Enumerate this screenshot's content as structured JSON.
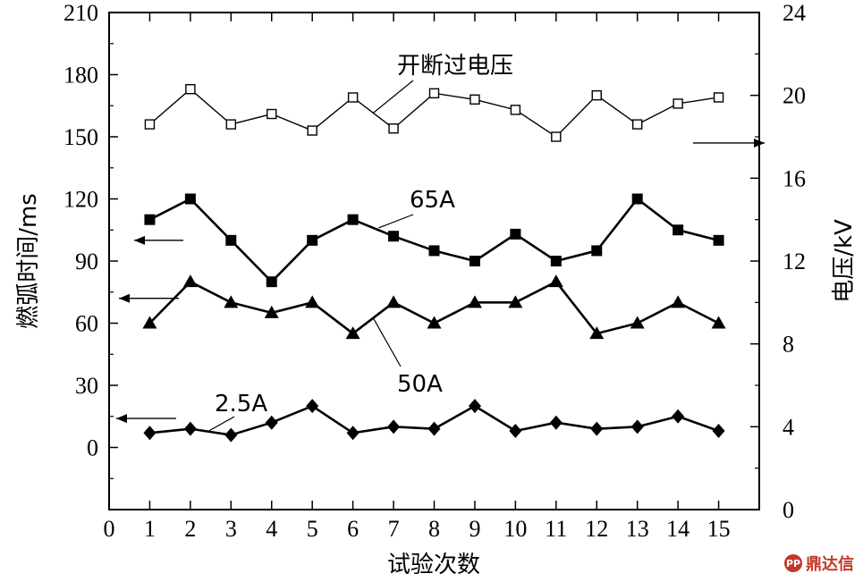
{
  "chart_data": {
    "type": "line",
    "xlabel": "试验次数",
    "ylabel_left": "燃弧时间/ms",
    "ylabel_right": "电压/kV",
    "xlim": [
      0,
      16
    ],
    "ylim_left": [
      -30,
      210
    ],
    "ylim_right": [
      0,
      24
    ],
    "x_ticks": [
      "0",
      "1",
      "2",
      "3",
      "4",
      "5",
      "6",
      "7",
      "8",
      "9",
      "10",
      "11",
      "12",
      "13",
      "14",
      "15"
    ],
    "y_left_ticks": [
      "0",
      "30",
      "60",
      "90",
      "120",
      "150",
      "180",
      "210"
    ],
    "y_right_ticks": [
      "0",
      "4",
      "8",
      "12",
      "16",
      "20",
      "24"
    ],
    "grid": false,
    "x": [
      1,
      2,
      3,
      4,
      5,
      6,
      7,
      8,
      9,
      10,
      11,
      12,
      13,
      14,
      15
    ],
    "series": [
      {
        "name": "开断过电压",
        "axis": "right",
        "marker": "square-open",
        "values": [
          18.6,
          20.3,
          18.6,
          19.1,
          18.3,
          19.9,
          18.4,
          20.1,
          19.8,
          19.3,
          18.0,
          20.0,
          18.6,
          19.6,
          19.9
        ]
      },
      {
        "name": "65A",
        "axis": "left",
        "marker": "square-filled",
        "values": [
          110,
          120,
          100,
          80,
          100,
          110,
          102,
          95,
          90,
          103,
          90,
          95,
          120,
          105,
          100
        ]
      },
      {
        "name": "50A",
        "axis": "left",
        "marker": "triangle-filled",
        "values": [
          60,
          80,
          70,
          65,
          70,
          55,
          70,
          60,
          70,
          70,
          80,
          55,
          60,
          70,
          60
        ]
      },
      {
        "name": "2.5A",
        "axis": "left",
        "marker": "diamond-filled",
        "values": [
          7,
          9,
          6,
          12,
          20,
          7,
          10,
          9,
          20,
          8,
          12,
          9,
          10,
          15,
          8
        ]
      }
    ],
    "arrows": [
      {
        "direction": "right",
        "series": "开断过电压",
        "axis": "right"
      },
      {
        "direction": "left",
        "series": "65A",
        "axis": "left"
      },
      {
        "direction": "left",
        "series": "50A",
        "axis": "left"
      },
      {
        "direction": "left",
        "series": "2.5A",
        "axis": "left"
      }
    ]
  },
  "watermark": {
    "text": "鼎达信",
    "badge": "PP"
  }
}
